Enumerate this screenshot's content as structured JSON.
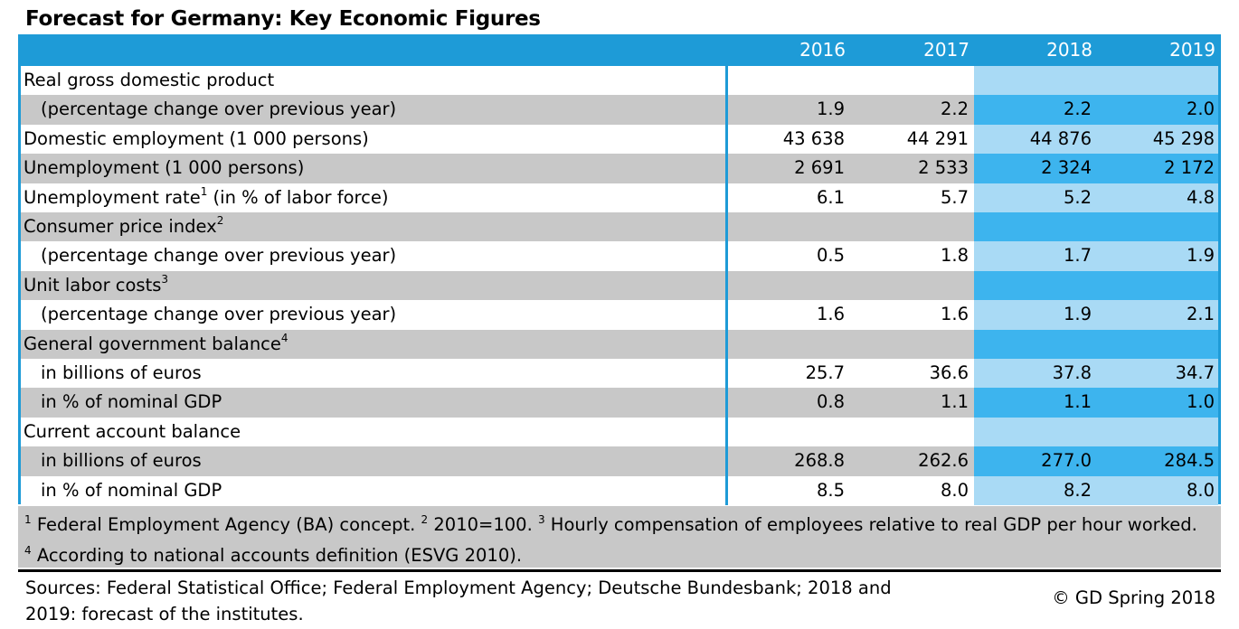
{
  "title": "Forecast for Germany: Key Economic Figures",
  "columns": [
    "2016",
    "2017",
    "2018",
    "2019"
  ],
  "rows": [
    {
      "label": "Real gross domestic product",
      "sup": "",
      "indent": false,
      "values": [
        "",
        "",
        "",
        ""
      ]
    },
    {
      "label": "(percentage change over previous year)",
      "sup": "",
      "indent": true,
      "values": [
        "1.9",
        "2.2",
        "2.2",
        "2.0"
      ]
    },
    {
      "label": "Domestic employment (1 000 persons)",
      "sup": "",
      "indent": false,
      "values": [
        "43 638",
        "44 291",
        "44 876",
        "45 298"
      ]
    },
    {
      "label": "Unemployment (1 000 persons)",
      "sup": "",
      "indent": false,
      "values": [
        "2 691",
        "2 533",
        "2 324",
        "2 172"
      ]
    },
    {
      "label": "Unemployment rate",
      "sup": "1",
      "suffix": " (in % of labor force)",
      "indent": false,
      "values": [
        "6.1",
        "5.7",
        "5.2",
        "4.8"
      ]
    },
    {
      "label": "Consumer price index",
      "sup": "2",
      "indent": false,
      "values": [
        "",
        "",
        "",
        ""
      ]
    },
    {
      "label": "(percentage change over previous year)",
      "sup": "",
      "indent": true,
      "values": [
        "0.5",
        "1.8",
        "1.7",
        "1.9"
      ]
    },
    {
      "label": "Unit labor costs",
      "sup": "3",
      "indent": false,
      "values": [
        "",
        "",
        "",
        ""
      ]
    },
    {
      "label": "(percentage change over previous year)",
      "sup": "",
      "indent": true,
      "values": [
        "1.6",
        "1.6",
        "1.9",
        "2.1"
      ]
    },
    {
      "label": "General government balance",
      "sup": "4",
      "indent": false,
      "values": [
        "",
        "",
        "",
        ""
      ]
    },
    {
      "label": "in billions of euros",
      "sup": "",
      "indent": true,
      "values": [
        "25.7",
        "36.6",
        "37.8",
        "34.7"
      ]
    },
    {
      "label": "in % of nominal GDP",
      "sup": "",
      "indent": true,
      "values": [
        "0.8",
        "1.1",
        "1.1",
        "1.0"
      ]
    },
    {
      "label": "Current account balance",
      "sup": "",
      "indent": false,
      "values": [
        "",
        "",
        "",
        ""
      ]
    },
    {
      "label": "in billions of euros",
      "sup": "",
      "indent": true,
      "values": [
        "268.8",
        "262.6",
        "277.0",
        "284.5"
      ]
    },
    {
      "label": "in % of nominal GDP",
      "sup": "",
      "indent": true,
      "values": [
        "8.5",
        "8.0",
        "8.2",
        "8.0"
      ]
    }
  ],
  "footnotes": [
    {
      "sup": "1",
      "text": " Federal Employment Agency (BA) concept. "
    },
    {
      "sup": "2",
      "text": " 2010=100. "
    },
    {
      "sup": "3",
      "text": " Hourly compensation of employees relative to real GDP per hour worked. "
    },
    {
      "sup": "4",
      "text": " According to national accounts definition (ESVG 2010)."
    }
  ],
  "sources": "Sources: Federal Statistical Office; Federal Employment Agency; Deutsche Bundesbank; 2018 and 2019: forecast of the institutes.",
  "copyright": "© GD Spring 2018",
  "colors": {
    "header_blue": "#1e9bd7",
    "row_white": "#ffffff",
    "row_gray": "#c8c8c8",
    "forecast_light": "#a9daf5",
    "forecast_dark": "#3db4ee"
  }
}
